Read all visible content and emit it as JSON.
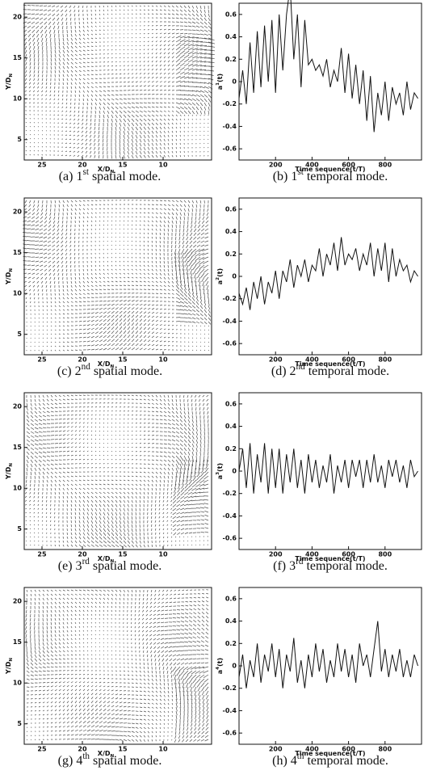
{
  "chart_data": [
    {
      "type": "vector-field",
      "caption": {
        "prefix": "(a) 1",
        "sup": "st",
        "suffix": " spatial mode."
      },
      "xlabel": {
        "text": "X/D",
        "sub": "N"
      },
      "ylabel": {
        "text": "Y/D",
        "sub": "N"
      },
      "xlim": [
        27.2,
        4
      ],
      "ylim": [
        2.5,
        21.7
      ],
      "xticks": [
        25,
        20,
        15,
        10
      ],
      "yticks": [
        5,
        10,
        15,
        20
      ],
      "color": "#222222"
    },
    {
      "type": "line",
      "caption": {
        "prefix": "(b) 1",
        "sup": "st",
        "suffix": " temporal mode."
      },
      "xlabel": {
        "text": "Time sequence(t/T)"
      },
      "ylabel": {
        "text": "a",
        "sup": "1",
        "after": "(t)"
      },
      "xlim": [
        0,
        1000
      ],
      "ylim": [
        -0.7,
        0.7
      ],
      "xticks": [
        200,
        400,
        600,
        800
      ],
      "yticks": [
        0.6,
        0.4,
        0.2,
        0,
        -0.2,
        -0.4,
        -0.6
      ],
      "color": "#111111",
      "x": [
        0,
        20,
        40,
        60,
        80,
        100,
        120,
        140,
        160,
        180,
        200,
        220,
        240,
        260,
        280,
        300,
        320,
        340,
        360,
        380,
        400,
        420,
        440,
        460,
        480,
        500,
        520,
        540,
        560,
        580,
        600,
        620,
        640,
        660,
        680,
        700,
        720,
        740,
        760,
        780,
        800,
        820,
        840,
        860,
        880,
        900,
        920,
        940,
        960,
        980
      ],
      "values": [
        -0.15,
        0.1,
        -0.2,
        0.35,
        -0.1,
        0.45,
        -0.05,
        0.5,
        0.0,
        0.55,
        -0.1,
        0.6,
        0.1,
        0.6,
        0.85,
        0.2,
        0.6,
        -0.05,
        0.55,
        0.15,
        0.2,
        0.1,
        0.15,
        0.05,
        0.2,
        -0.05,
        0.1,
        0.0,
        0.3,
        -0.1,
        0.25,
        -0.15,
        0.15,
        -0.2,
        0.1,
        -0.35,
        0.05,
        -0.45,
        -0.1,
        -0.3,
        0.0,
        -0.35,
        -0.05,
        -0.2,
        -0.1,
        -0.3,
        0.0,
        -0.25,
        -0.1,
        -0.15
      ]
    },
    {
      "type": "vector-field",
      "caption": {
        "prefix": "(c) 2",
        "sup": "nd",
        "suffix": " spatial mode."
      },
      "xlabel": {
        "text": "X/D",
        "sub": "N"
      },
      "ylabel": {
        "text": "Y/D",
        "sub": "N"
      },
      "xlim": [
        27.2,
        4
      ],
      "ylim": [
        2.5,
        21.7
      ],
      "xticks": [
        25,
        20,
        15,
        10
      ],
      "yticks": [
        5,
        10,
        15,
        20
      ],
      "color": "#222222"
    },
    {
      "type": "line",
      "caption": {
        "prefix": "(d) 2",
        "sup": "nd",
        "suffix": " temporal mode."
      },
      "xlabel": {
        "text": "Time sequence(t/T)"
      },
      "ylabel": {
        "text": "a",
        "sup": "2",
        "after": "(t)"
      },
      "xlim": [
        0,
        1000
      ],
      "ylim": [
        -0.7,
        0.7
      ],
      "xticks": [
        200,
        400,
        600,
        800
      ],
      "yticks": [
        0.6,
        0.4,
        0.2,
        0,
        -0.2,
        -0.4,
        -0.6
      ],
      "color": "#111111",
      "x": [
        0,
        20,
        40,
        60,
        80,
        100,
        120,
        140,
        160,
        180,
        200,
        220,
        240,
        260,
        280,
        300,
        320,
        340,
        360,
        380,
        400,
        420,
        440,
        460,
        480,
        500,
        520,
        540,
        560,
        580,
        600,
        620,
        640,
        660,
        680,
        700,
        720,
        740,
        760,
        780,
        800,
        820,
        840,
        860,
        880,
        900,
        920,
        940,
        960,
        980
      ],
      "values": [
        -0.15,
        -0.25,
        -0.1,
        -0.3,
        -0.05,
        -0.2,
        0.0,
        -0.25,
        -0.05,
        -0.15,
        0.05,
        -0.2,
        0.05,
        -0.05,
        0.15,
        -0.1,
        0.1,
        0.0,
        0.15,
        -0.05,
        0.1,
        0.05,
        0.25,
        0.0,
        0.2,
        0.1,
        0.3,
        0.05,
        0.35,
        0.1,
        0.2,
        0.15,
        0.25,
        0.05,
        0.2,
        0.1,
        0.3,
        0.0,
        0.25,
        0.05,
        0.3,
        -0.05,
        0.25,
        0.0,
        0.15,
        0.05,
        0.1,
        -0.05,
        0.05,
        0.0
      ]
    },
    {
      "type": "vector-field",
      "caption": {
        "prefix": "(e) 3",
        "sup": "rd",
        "suffix": " spatial mode."
      },
      "xlabel": {
        "text": "X/D",
        "sub": "N"
      },
      "ylabel": {
        "text": "Y/D",
        "sub": "N"
      },
      "xlim": [
        27.2,
        4
      ],
      "ylim": [
        2.5,
        21.7
      ],
      "xticks": [
        25,
        20,
        15,
        10
      ],
      "yticks": [
        5,
        10,
        15,
        20
      ],
      "color": "#222222"
    },
    {
      "type": "line",
      "caption": {
        "prefix": "(f) 3",
        "sup": "rd",
        "suffix": " temporal mode."
      },
      "xlabel": {
        "text": "Time sequence(t/T)"
      },
      "ylabel": {
        "text": "a",
        "sup": "3",
        "after": "(t)"
      },
      "xlim": [
        0,
        1000
      ],
      "ylim": [
        -0.7,
        0.7
      ],
      "xticks": [
        200,
        400,
        600,
        800
      ],
      "yticks": [
        0.6,
        0.4,
        0.2,
        0,
        -0.2,
        -0.4,
        -0.6
      ],
      "color": "#111111",
      "x": [
        0,
        20,
        40,
        60,
        80,
        100,
        120,
        140,
        160,
        180,
        200,
        220,
        240,
        260,
        280,
        300,
        320,
        340,
        360,
        380,
        400,
        420,
        440,
        460,
        480,
        500,
        520,
        540,
        560,
        580,
        600,
        620,
        640,
        660,
        680,
        700,
        720,
        740,
        760,
        780,
        800,
        820,
        840,
        860,
        880,
        900,
        920,
        940,
        960,
        980
      ],
      "values": [
        0.0,
        0.2,
        -0.15,
        0.25,
        -0.2,
        0.15,
        -0.1,
        0.25,
        -0.2,
        0.2,
        -0.15,
        0.2,
        -0.2,
        0.15,
        -0.1,
        0.2,
        -0.15,
        0.1,
        -0.2,
        0.15,
        -0.1,
        0.1,
        -0.15,
        0.05,
        -0.1,
        0.15,
        -0.2,
        0.05,
        -0.1,
        0.1,
        -0.15,
        0.1,
        -0.05,
        0.1,
        -0.15,
        0.1,
        -0.1,
        0.15,
        -0.1,
        0.05,
        -0.15,
        0.1,
        -0.05,
        0.1,
        -0.1,
        0.05,
        -0.15,
        0.1,
        -0.05,
        0.0
      ]
    },
    {
      "type": "vector-field",
      "caption": {
        "prefix": "(g) 4",
        "sup": "th",
        "suffix": " spatial mode."
      },
      "xlabel": {
        "text": "X/D",
        "sub": "N"
      },
      "ylabel": {
        "text": "Y/D",
        "sub": "N"
      },
      "xlim": [
        27.2,
        4
      ],
      "ylim": [
        2.5,
        21.7
      ],
      "xticks": [
        25,
        20,
        15,
        10
      ],
      "yticks": [
        5,
        10,
        15,
        20
      ],
      "color": "#222222"
    },
    {
      "type": "line",
      "caption": {
        "prefix": "(h) 4",
        "sup": "th",
        "suffix": " temporal mode."
      },
      "xlabel": {
        "text": "Time sequence(t/T)"
      },
      "ylabel": {
        "text": "a",
        "sup": "4",
        "after": "(t)"
      },
      "xlim": [
        0,
        1000
      ],
      "ylim": [
        -0.7,
        0.7
      ],
      "xticks": [
        200,
        400,
        600,
        800
      ],
      "yticks": [
        0.6,
        0.4,
        0.2,
        0,
        -0.2,
        -0.4,
        -0.6
      ],
      "color": "#111111",
      "x": [
        0,
        20,
        40,
        60,
        80,
        100,
        120,
        140,
        160,
        180,
        200,
        220,
        240,
        260,
        280,
        300,
        320,
        340,
        360,
        380,
        400,
        420,
        440,
        460,
        480,
        500,
        520,
        540,
        560,
        580,
        600,
        620,
        640,
        660,
        680,
        700,
        720,
        740,
        760,
        780,
        800,
        820,
        840,
        860,
        880,
        900,
        920,
        940,
        960,
        980
      ],
      "values": [
        -0.1,
        0.1,
        -0.2,
        0.05,
        -0.1,
        0.2,
        -0.15,
        0.1,
        -0.05,
        0.2,
        -0.1,
        0.15,
        -0.2,
        0.1,
        -0.05,
        0.25,
        -0.15,
        0.05,
        -0.2,
        0.1,
        -0.1,
        0.2,
        -0.05,
        0.15,
        -0.15,
        0.05,
        -0.1,
        0.2,
        -0.05,
        0.15,
        -0.1,
        0.1,
        -0.15,
        0.2,
        0.0,
        0.1,
        -0.1,
        0.15,
        0.4,
        -0.05,
        0.15,
        -0.1,
        0.1,
        -0.05,
        0.15,
        -0.1,
        0.05,
        -0.1,
        0.1,
        0.0
      ]
    }
  ]
}
